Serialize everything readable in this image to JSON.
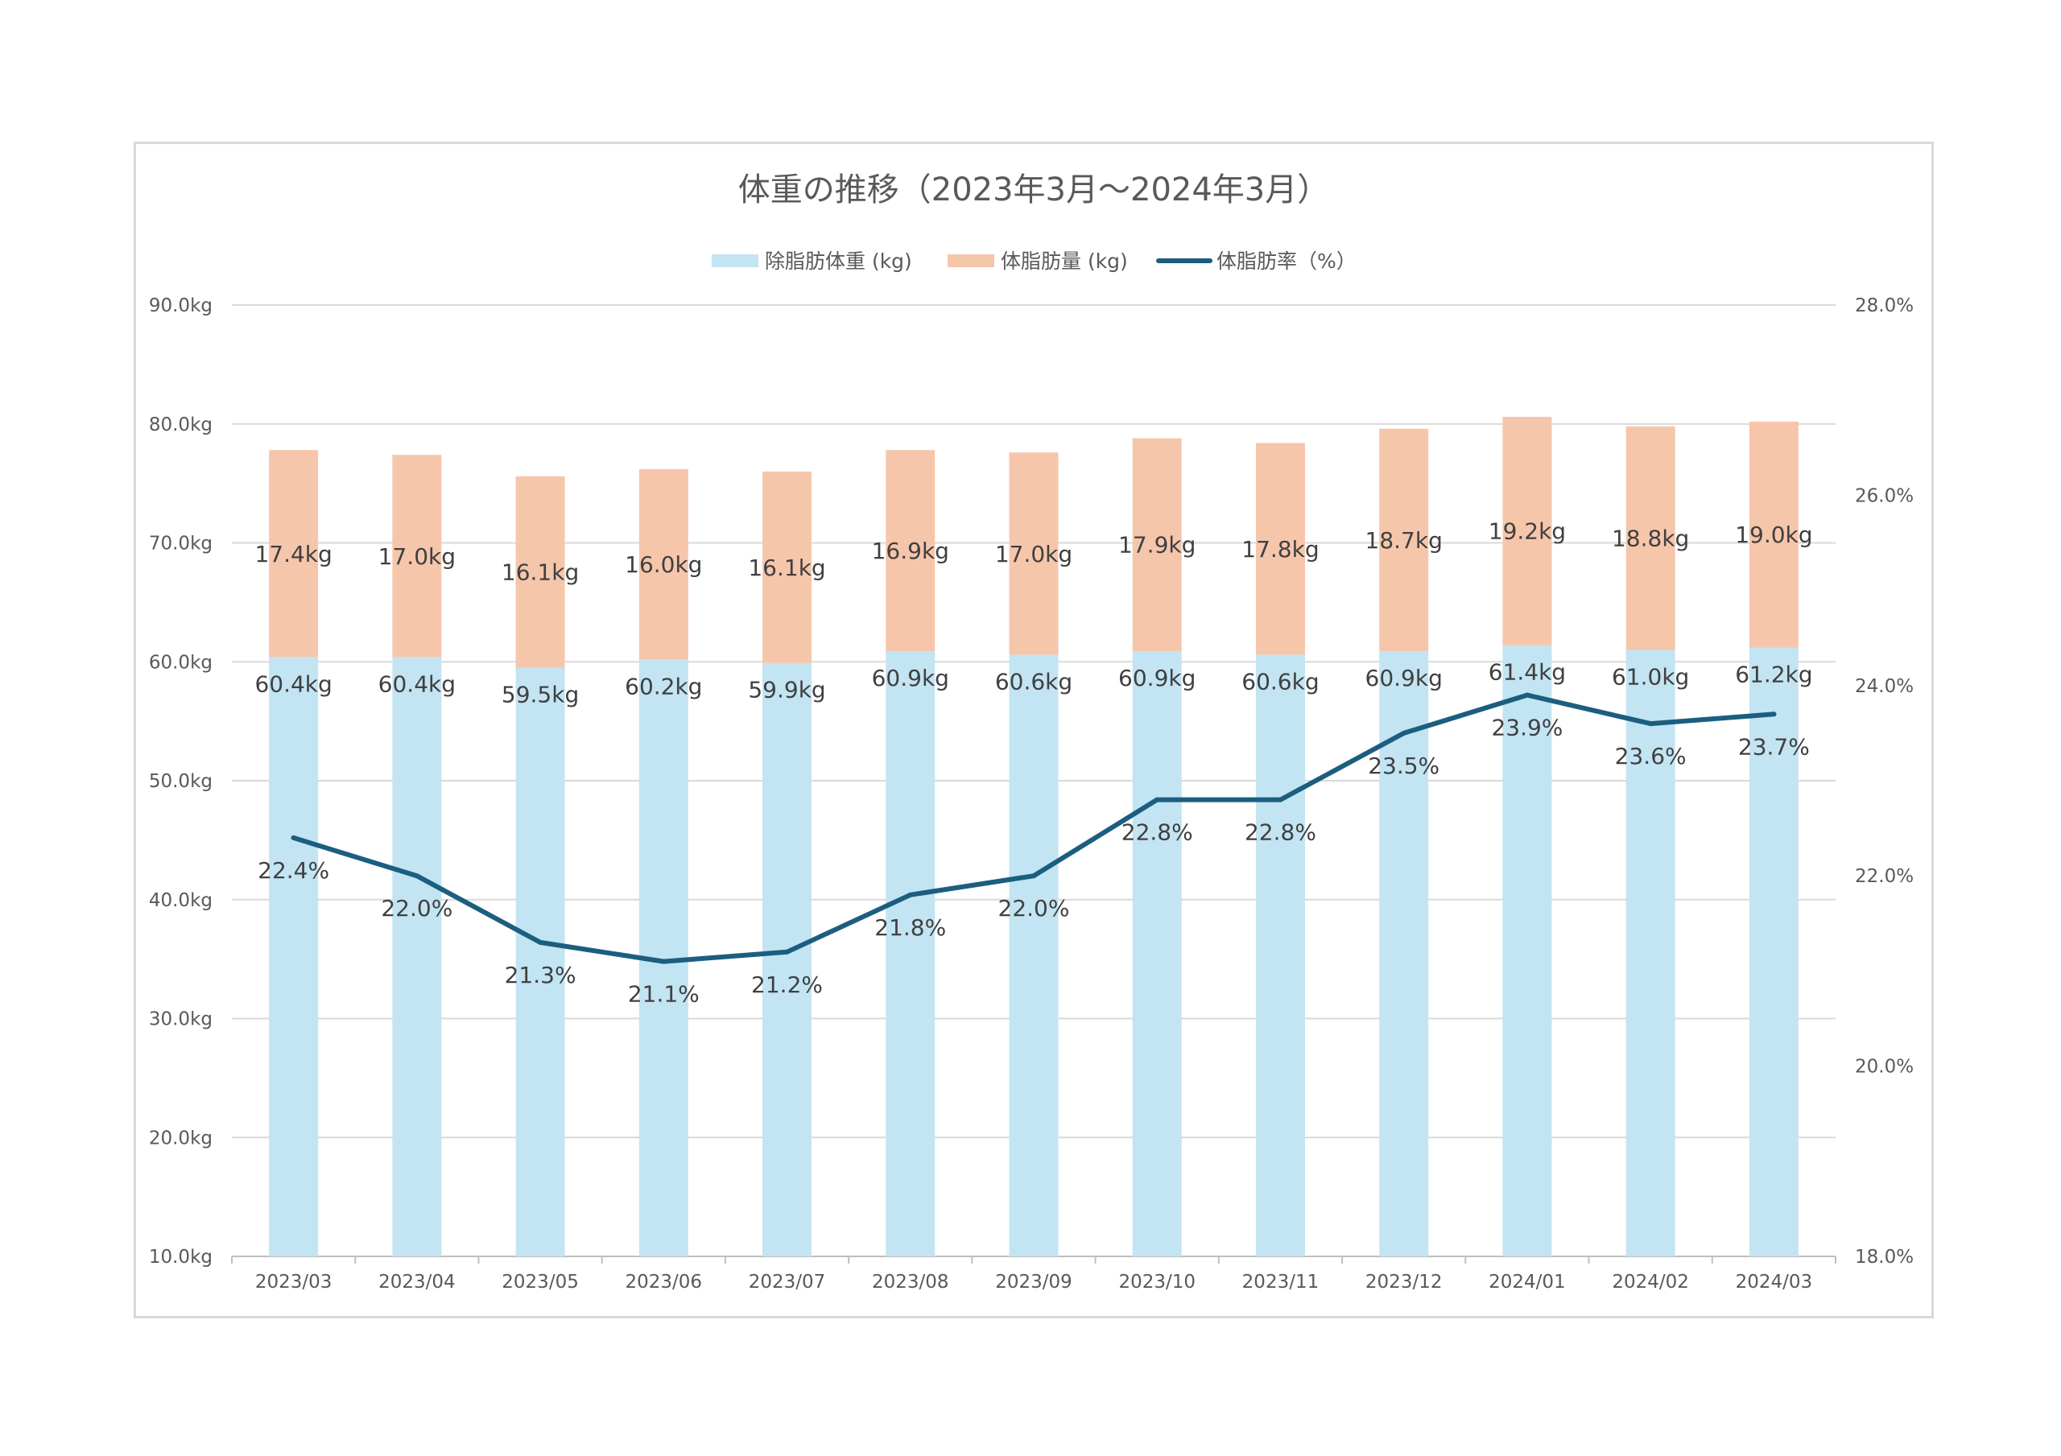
{
  "chart_data": {
    "type": "bar",
    "title": "体重の推移（2023年3月～2024年3月）",
    "categories": [
      "2023/03",
      "2023/04",
      "2023/05",
      "2023/06",
      "2023/07",
      "2023/08",
      "2023/09",
      "2023/10",
      "2023/11",
      "2023/12",
      "2024/01",
      "2024/02",
      "2024/03"
    ],
    "series": [
      {
        "name": "除脂肪体重 (kg)",
        "kind": "bar",
        "axis": "left",
        "color": "#c3e4f3",
        "values": [
          60.4,
          60.4,
          59.5,
          60.2,
          59.9,
          60.9,
          60.6,
          60.9,
          60.6,
          60.9,
          61.4,
          61.0,
          61.2
        ],
        "labels": [
          "60.4kg",
          "60.4kg",
          "59.5kg",
          "60.2kg",
          "59.9kg",
          "60.9kg",
          "60.6kg",
          "60.9kg",
          "60.6kg",
          "60.9kg",
          "61.4kg",
          "61.0kg",
          "61.2kg"
        ]
      },
      {
        "name": "体脂肪量 (kg)",
        "kind": "bar",
        "axis": "left",
        "color": "#f6c6ab",
        "values": [
          17.4,
          17.0,
          16.1,
          16.0,
          16.1,
          16.9,
          17.0,
          17.9,
          17.8,
          18.7,
          19.2,
          18.8,
          19.0
        ],
        "labels": [
          "17.4kg",
          "17.0kg",
          "16.1kg",
          "16.0kg",
          "16.1kg",
          "16.9kg",
          "17.0kg",
          "17.9kg",
          "17.8kg",
          "18.7kg",
          "19.2kg",
          "18.8kg",
          "19.0kg"
        ]
      },
      {
        "name": "体脂肪率（%）",
        "kind": "line",
        "axis": "right",
        "color": "#1b5e80",
        "values": [
          22.4,
          22.0,
          21.3,
          21.1,
          21.2,
          21.8,
          22.0,
          22.8,
          22.8,
          23.5,
          23.9,
          23.6,
          23.7
        ],
        "labels": [
          "22.4%",
          "22.0%",
          "21.3%",
          "21.1%",
          "21.2%",
          "21.8%",
          "22.0%",
          "22.8%",
          "22.8%",
          "23.5%",
          "23.9%",
          "23.6%",
          "23.7%"
        ]
      }
    ],
    "y_left": {
      "min": 10,
      "max": 90,
      "ticks": [
        "10.0kg",
        "20.0kg",
        "30.0kg",
        "40.0kg",
        "50.0kg",
        "60.0kg",
        "70.0kg",
        "80.0kg",
        "90.0kg"
      ]
    },
    "y_right": {
      "min": 18,
      "max": 28,
      "ticks": [
        "18.0%",
        "20.0%",
        "22.0%",
        "24.0%",
        "26.0%",
        "28.0%"
      ]
    },
    "grid": true,
    "legend_position": "top"
  }
}
